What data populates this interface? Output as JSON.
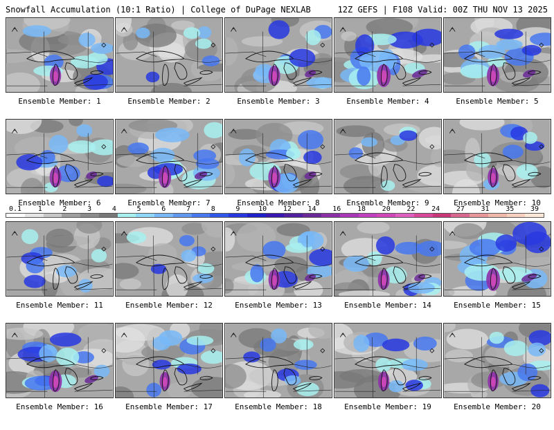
{
  "header": {
    "left": "Snowfall Accumulation (10:1 Ratio) | College of DuPage NEXLAB",
    "right": "12Z GEFS | F108 Valid: 00Z THU NOV 13 2025"
  },
  "panels": [
    {
      "label": "Ensemble Member: 1",
      "intensity": 0.55
    },
    {
      "label": "Ensemble Member: 2",
      "intensity": 0.2
    },
    {
      "label": "Ensemble Member: 3",
      "intensity": 0.6
    },
    {
      "label": "Ensemble Member: 4",
      "intensity": 0.85
    },
    {
      "label": "Ensemble Member: 5",
      "intensity": 0.7
    },
    {
      "label": "Ensemble Member: 6",
      "intensity": 0.6
    },
    {
      "label": "Ensemble Member: 7",
      "intensity": 0.7
    },
    {
      "label": "Ensemble Member: 8",
      "intensity": 0.65
    },
    {
      "label": "Ensemble Member: 9",
      "intensity": 0.15
    },
    {
      "label": "Ensemble Member: 10",
      "intensity": 0.5
    },
    {
      "label": "Ensemble Member: 11",
      "intensity": 0.35
    },
    {
      "label": "Ensemble Member: 12",
      "intensity": 0.25
    },
    {
      "label": "Ensemble Member: 13",
      "intensity": 0.6
    },
    {
      "label": "Ensemble Member: 14",
      "intensity": 0.6
    },
    {
      "label": "Ensemble Member: 15",
      "intensity": 0.85
    },
    {
      "label": "Ensemble Member: 16",
      "intensity": 0.75
    },
    {
      "label": "Ensemble Member: 17",
      "intensity": 0.45
    },
    {
      "label": "Ensemble Member: 18",
      "intensity": 0.35
    },
    {
      "label": "Ensemble Member: 19",
      "intensity": 0.55
    },
    {
      "label": "Ensemble Member: 20",
      "intensity": 0.5
    }
  ],
  "colorbar": {
    "ticks": [
      "0.1",
      "1",
      "2",
      "3",
      "4",
      "5",
      "6",
      "7",
      "8",
      "9",
      "10",
      "12",
      "14",
      "16",
      "18",
      "20",
      "22",
      "24",
      "27",
      "31",
      "35",
      "39"
    ],
    "colors": [
      "#ffffff",
      "#e6e6e6",
      "#c8c8c8",
      "#a0a0a0",
      "#8c8c8c",
      "#787878",
      "#a8f0f0",
      "#90d8f8",
      "#78b8f8",
      "#6098f0",
      "#4878f0",
      "#3058e8",
      "#2838e0",
      "#2020c8",
      "#3818b0",
      "#5020a0",
      "#6a2898",
      "#8c30a8",
      "#a838b8",
      "#c040c0",
      "#d048b8",
      "#e060c0",
      "#d84898",
      "#c83878",
      "#d86890",
      "#e89898",
      "#f0b8a8",
      "#f8d0c0",
      "#fce8d8"
    ]
  }
}
